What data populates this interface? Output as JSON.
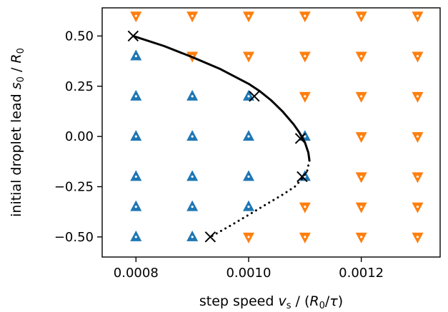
{
  "chart_data": {
    "type": "scatter",
    "xlabel": "step speed v_s / (R_0/τ)",
    "ylabel": "initial droplet lead s_0 / R_0",
    "xlim": [
      0.00074,
      0.00134
    ],
    "ylim": [
      -0.6,
      0.64
    ],
    "x_ticks": [
      {
        "value": 0.0008,
        "label": "0.0008"
      },
      {
        "value": 0.001,
        "label": "0.0010"
      },
      {
        "value": 0.0012,
        "label": "0.0012"
      }
    ],
    "y_ticks": [
      {
        "value": 0.5,
        "label": "0.50"
      },
      {
        "value": 0.25,
        "label": "0.25"
      },
      {
        "value": 0.0,
        "label": "0.00"
      },
      {
        "value": -0.25,
        "label": "−0.25"
      },
      {
        "value": -0.5,
        "label": "−0.50"
      }
    ],
    "grid": false,
    "series": [
      {
        "marker": "triangle-up",
        "color": "#1f77b4",
        "points": [
          [
            0.0008,
            0.4
          ],
          [
            0.0008,
            0.2
          ],
          [
            0.0008,
            0.0
          ],
          [
            0.0008,
            -0.2
          ],
          [
            0.0008,
            -0.35
          ],
          [
            0.0008,
            -0.5
          ],
          [
            0.0009,
            0.2
          ],
          [
            0.0009,
            0.0
          ],
          [
            0.0009,
            -0.2
          ],
          [
            0.0009,
            -0.35
          ],
          [
            0.0009,
            -0.5
          ],
          [
            0.001,
            0.2
          ],
          [
            0.001,
            0.0
          ],
          [
            0.001,
            -0.2
          ],
          [
            0.001,
            -0.35
          ],
          [
            0.0011,
            0.0
          ],
          [
            0.0011,
            -0.2
          ]
        ]
      },
      {
        "marker": "triangle-down",
        "color": "#ff7f0e",
        "points": [
          [
            0.0008,
            0.6
          ],
          [
            0.0009,
            0.6
          ],
          [
            0.0009,
            0.4
          ],
          [
            0.001,
            0.6
          ],
          [
            0.001,
            0.4
          ],
          [
            0.001,
            -0.5
          ],
          [
            0.0011,
            0.6
          ],
          [
            0.0011,
            0.4
          ],
          [
            0.0011,
            0.2
          ],
          [
            0.0011,
            -0.35
          ],
          [
            0.0011,
            -0.5
          ],
          [
            0.0012,
            0.6
          ],
          [
            0.0012,
            0.4
          ],
          [
            0.0012,
            0.2
          ],
          [
            0.0012,
            0.0
          ],
          [
            0.0012,
            -0.2
          ],
          [
            0.0012,
            -0.35
          ],
          [
            0.0012,
            -0.5
          ],
          [
            0.0013,
            0.6
          ],
          [
            0.0013,
            0.4
          ],
          [
            0.0013,
            0.2
          ],
          [
            0.0013,
            0.0
          ],
          [
            0.0013,
            -0.2
          ],
          [
            0.0013,
            -0.35
          ],
          [
            0.0013,
            -0.5
          ]
        ]
      },
      {
        "marker": "x",
        "color": "#000000",
        "points": [
          [
            0.000795,
            0.5
          ],
          [
            0.00101,
            0.2
          ],
          [
            0.001092,
            -0.01
          ],
          [
            0.001095,
            -0.2
          ],
          [
            0.000932,
            -0.5
          ]
        ]
      }
    ],
    "curves": [
      {
        "style": "solid",
        "color": "#000000",
        "points": [
          [
            0.000795,
            0.5
          ],
          [
            0.00085,
            0.45
          ],
          [
            0.0009,
            0.395
          ],
          [
            0.00095,
            0.335
          ],
          [
            0.001,
            0.262
          ],
          [
            0.00102,
            0.225
          ],
          [
            0.00104,
            0.18
          ],
          [
            0.00106,
            0.125
          ],
          [
            0.00108,
            0.06
          ],
          [
            0.00109,
            0.02
          ],
          [
            0.0011,
            -0.03
          ],
          [
            0.001106,
            -0.08
          ],
          [
            0.001108,
            -0.12
          ]
        ]
      },
      {
        "style": "dotted",
        "color": "#000000",
        "points": [
          [
            0.001108,
            -0.12
          ],
          [
            0.001104,
            -0.17
          ],
          [
            0.001095,
            -0.21
          ],
          [
            0.001082,
            -0.25
          ],
          [
            0.00106,
            -0.29
          ],
          [
            0.00103,
            -0.34
          ],
          [
            0.001,
            -0.39
          ],
          [
            0.00097,
            -0.44
          ],
          [
            0.000932,
            -0.5
          ]
        ]
      }
    ]
  }
}
